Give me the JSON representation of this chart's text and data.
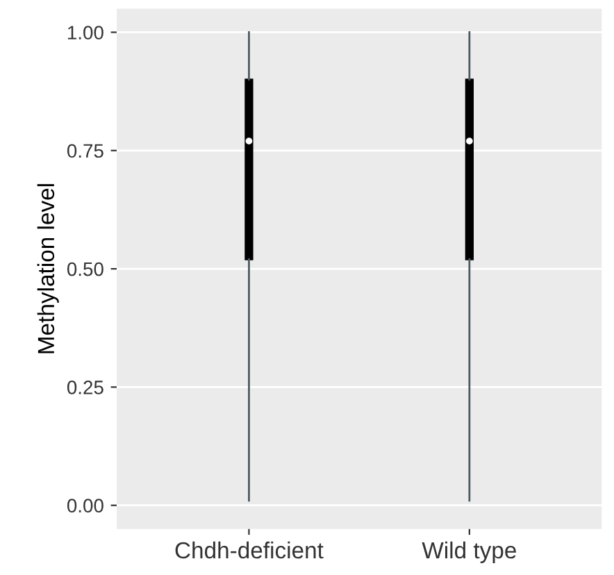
{
  "chart_data": {
    "type": "box",
    "ylabel": "Methylation level",
    "categories": [
      "Chdh-deficient",
      "Wild type"
    ],
    "series": [
      {
        "color": "#000000",
        "boxes": [
          {
            "low": 0.01,
            "q1": 0.52,
            "median": 0.77,
            "q3": 0.9,
            "high": 1.0
          },
          {
            "low": 0.01,
            "q1": 0.52,
            "median": 0.77,
            "q3": 0.9,
            "high": 1.0
          }
        ]
      }
    ],
    "ylim": [
      -0.05,
      1.05
    ],
    "yticks": [
      {
        "value": 0,
        "label": "0.00"
      },
      {
        "value": 0.25,
        "label": "0.25"
      },
      {
        "value": 0.5,
        "label": "0.50"
      },
      {
        "value": 0.75,
        "label": "0.75"
      },
      {
        "value": 1,
        "label": "1.00"
      }
    ],
    "grid": "y"
  }
}
